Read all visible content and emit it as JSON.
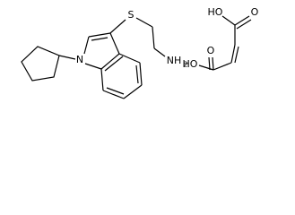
{
  "molecules": [
    {
      "atoms": [
        {
          "label": "S"
        },
        {
          "label": "N"
        },
        {
          "label": "NH",
          "subscript": "2"
        }
      ]
    },
    {
      "atoms": [
        {
          "label": "HO"
        },
        {
          "label": "O"
        },
        {
          "label": "O"
        },
        {
          "label": "HO"
        }
      ]
    }
  ]
}
